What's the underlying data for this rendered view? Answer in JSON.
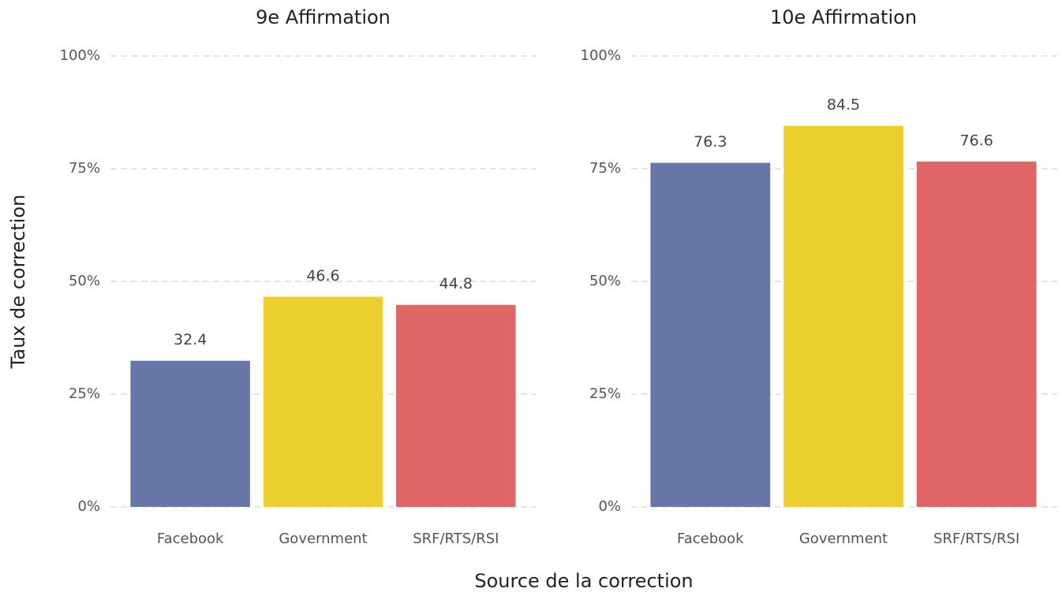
{
  "axis_labels": {
    "x": "Source de la correction",
    "y": "Taux de correction"
  },
  "chart_data": [
    {
      "type": "bar",
      "title": "9e Affirmation",
      "categories": [
        "Facebook",
        "Government",
        "SRF/RTS/RSI"
      ],
      "values": [
        32.4,
        46.6,
        44.8
      ],
      "colors": [
        "#6777a8",
        "#ebcf2e",
        "#df6666"
      ],
      "ylim": [
        0,
        100
      ],
      "yticks": [
        {
          "value": 0,
          "label": "0%"
        },
        {
          "value": 25,
          "label": "25%"
        },
        {
          "value": 50,
          "label": "50%"
        },
        {
          "value": 75,
          "label": "75%"
        },
        {
          "value": 100,
          "label": "100%"
        }
      ],
      "grid": true
    },
    {
      "type": "bar",
      "title": "10e Affirmation",
      "categories": [
        "Facebook",
        "Government",
        "SRF/RTS/RSI"
      ],
      "values": [
        76.3,
        84.5,
        76.6
      ],
      "colors": [
        "#6777a8",
        "#ebcf2e",
        "#df6666"
      ],
      "ylim": [
        0,
        100
      ],
      "yticks": [
        {
          "value": 0,
          "label": "0%"
        },
        {
          "value": 25,
          "label": "25%"
        },
        {
          "value": 50,
          "label": "50%"
        },
        {
          "value": 75,
          "label": "75%"
        },
        {
          "value": 100,
          "label": "100%"
        }
      ],
      "grid": true
    }
  ]
}
